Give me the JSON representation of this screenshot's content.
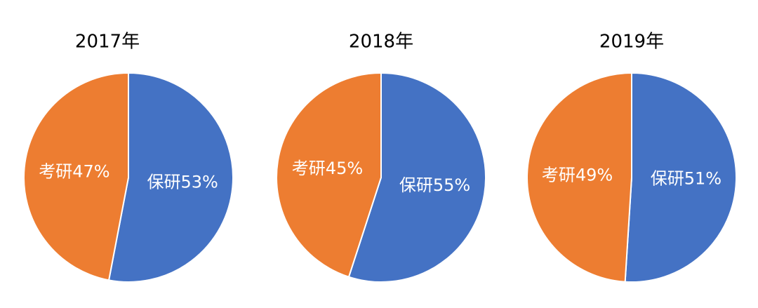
{
  "chart_data": [
    {
      "type": "pie",
      "title": "2017年",
      "categories": [
        "保研",
        "考研"
      ],
      "values": [
        53,
        47
      ],
      "value_labels": [
        "53%",
        "47%"
      ],
      "colors": [
        "#4472c4",
        "#ed7d31"
      ]
    },
    {
      "type": "pie",
      "title": "2018年",
      "categories": [
        "保研",
        "考研"
      ],
      "values": [
        55,
        45
      ],
      "value_labels": [
        "55%",
        "45%"
      ],
      "colors": [
        "#4472c4",
        "#ed7d31"
      ]
    },
    {
      "type": "pie",
      "title": "2019年",
      "categories": [
        "保研",
        "考研"
      ],
      "values": [
        51,
        49
      ],
      "value_labels": [
        "51%",
        "49%"
      ],
      "colors": [
        "#4472c4",
        "#ed7d31"
      ]
    }
  ]
}
